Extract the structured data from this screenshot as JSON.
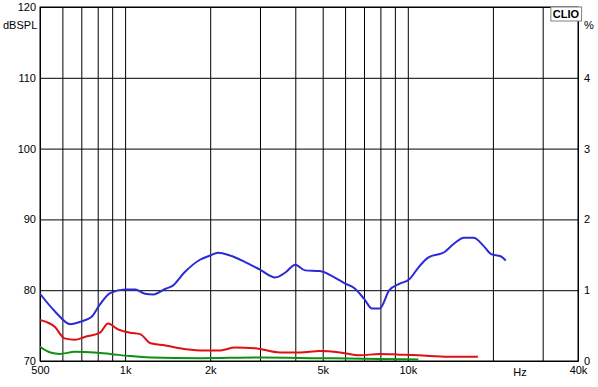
{
  "chart_data": {
    "type": "line",
    "title": "CLIO",
    "xlabel": "Hz",
    "ylabel": "dBSPL",
    "y2label": "%",
    "log": "x",
    "grid": true,
    "xlim": [
      500,
      40000
    ],
    "xticks": [
      500,
      {
        "value": 600,
        "label": null
      },
      {
        "value": 700,
        "label": null
      },
      {
        "value": 800,
        "label": null
      },
      {
        "value": 900,
        "label": null
      },
      {
        "value": 1000,
        "label": "1k"
      },
      {
        "value": 2000,
        "label": "2k"
      },
      {
        "value": 3000,
        "label": null
      },
      {
        "value": 4000,
        "label": null
      },
      {
        "value": 5000,
        "label": "5k"
      },
      {
        "value": 6000,
        "label": null
      },
      {
        "value": 7000,
        "label": null
      },
      {
        "value": 8000,
        "label": null
      },
      {
        "value": 9000,
        "label": null
      },
      {
        "value": 10000,
        "label": "10k"
      },
      {
        "value": 20000,
        "label": null
      },
      {
        "value": 30000,
        "label": null
      },
      {
        "value": 40000,
        "label": "40k"
      }
    ],
    "ylim": [
      70,
      120
    ],
    "yticks": [
      70,
      80,
      90,
      100,
      110,
      120
    ],
    "y2lim": [
      0,
      5
    ],
    "y2ticks": [
      0,
      1,
      2,
      3,
      4
    ],
    "series": [
      {
        "color": "#2a2ad8",
        "x": [
          500,
          565,
          640,
          690,
          760,
          815,
          885,
          1000,
          1085,
          1175,
          1260,
          1390,
          1470,
          1620,
          1840,
          2000,
          2130,
          2350,
          2650,
          3000,
          3400,
          3690,
          4000,
          4330,
          4880,
          5500,
          5960,
          6460,
          7000,
          7480,
          7950,
          8600,
          9330,
          10100,
          10900,
          11800,
          13500,
          14600,
          15800,
          17100,
          18500,
          19700,
          21300,
          22200
        ],
        "values": [
          79.5,
          77,
          75.2,
          75.5,
          76.2,
          78,
          79.6,
          80.1,
          80.1,
          79.5,
          79.4,
          80.2,
          80.6,
          82.5,
          84.3,
          84.9,
          85.3,
          84.9,
          84,
          82.9,
          81.8,
          82.5,
          83.6,
          82.8,
          82.7,
          81.8,
          81,
          80.3,
          78.8,
          77.4,
          77.4,
          80,
          80.9,
          81.5,
          83.2,
          84.6,
          85.4,
          86.6,
          87.4,
          87.4,
          86.3,
          85.1,
          84.8,
          84.2
        ]
      },
      {
        "color": "#e01010",
        "axis": "y2",
        "x": [
          500,
          565,
          610,
          665,
          720,
          815,
          870,
          940,
          1040,
          1130,
          1230,
          1390,
          1560,
          1840,
          2170,
          2440,
          2880,
          3530,
          4160,
          4880,
          5760,
          6770,
          7950,
          9330,
          10900,
          13900,
          17700
        ],
        "values": [
          0.58,
          0.48,
          0.32,
          0.3,
          0.34,
          0.4,
          0.53,
          0.45,
          0.4,
          0.38,
          0.25,
          0.22,
          0.18,
          0.15,
          0.15,
          0.19,
          0.18,
          0.12,
          0.12,
          0.14,
          0.12,
          0.08,
          0.1,
          0.09,
          0.08,
          0.06,
          0.06
        ]
      },
      {
        "color": "#109010",
        "axis": "y2",
        "x": [
          500,
          544,
          588,
          665,
          780,
          885,
          1040,
          1230,
          1840,
          3000,
          4880,
          7950,
          10900
        ],
        "values": [
          0.2,
          0.12,
          0.1,
          0.13,
          0.12,
          0.1,
          0.07,
          0.05,
          0.04,
          0.05,
          0.04,
          0.03,
          0.02
        ]
      }
    ]
  }
}
